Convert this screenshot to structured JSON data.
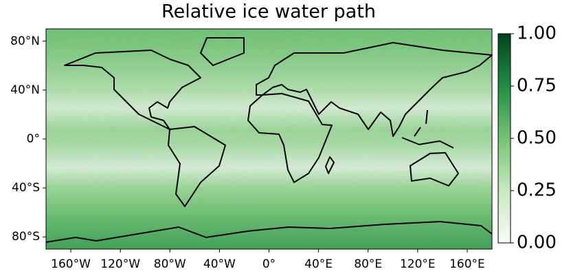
{
  "chart_data": {
    "type": "map",
    "title": "Relative ice water path",
    "xlim": [
      -180,
      180
    ],
    "ylim": [
      -90,
      90
    ],
    "xticks": [
      {
        "value": -160,
        "label": "160°W"
      },
      {
        "value": -120,
        "label": "120°W"
      },
      {
        "value": -80,
        "label": "80°W"
      },
      {
        "value": -40,
        "label": "40°W"
      },
      {
        "value": 0,
        "label": "0°"
      },
      {
        "value": 40,
        "label": "40°E"
      },
      {
        "value": 80,
        "label": "80°E"
      },
      {
        "value": 120,
        "label": "120°E"
      },
      {
        "value": 160,
        "label": "160°E"
      }
    ],
    "yticks": [
      {
        "value": -80,
        "label": "80°S"
      },
      {
        "value": -40,
        "label": "40°S"
      },
      {
        "value": 0,
        "label": "0°"
      },
      {
        "value": 40,
        "label": "40°N"
      },
      {
        "value": 80,
        "label": "80°N"
      }
    ],
    "colorbar": {
      "lim": [
        0,
        1
      ],
      "colors": [
        "#f7fcf5",
        "#c7e9c0",
        "#74c476",
        "#238b45",
        "#00441b"
      ],
      "ticks": [
        {
          "value": 0,
          "label": "0.00"
        },
        {
          "value": 0.25,
          "label": "0.25"
        },
        {
          "value": 0.5,
          "label": "0.50"
        },
        {
          "value": 0.75,
          "label": "0.75"
        },
        {
          "value": 1,
          "label": "1.00"
        }
      ]
    }
  }
}
